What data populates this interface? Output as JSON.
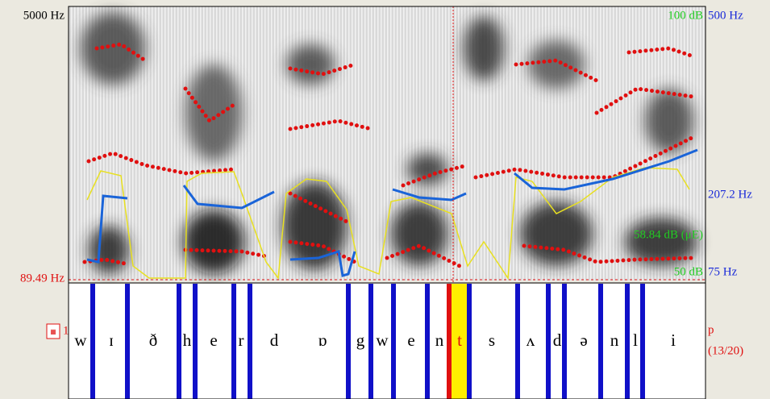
{
  "spectrogram": {
    "left_top": "5000 Hz",
    "left_cursor": "89.49 Hz",
    "intensity_top": "100 dB",
    "intensity_value": "58.84 dB (μE)",
    "intensity_bottom": "50 dB",
    "pitch_top": "500 Hz",
    "pitch_value": "207.2 Hz",
    "pitch_bottom": "75 Hz"
  },
  "tier": {
    "number": "1",
    "name": "p",
    "count": "(13/20)",
    "intervals": [
      "w",
      "ɪ",
      "ð",
      "h",
      "e",
      "r",
      "d",
      "ɒ",
      "g",
      "w",
      "e",
      "n",
      "t",
      "s",
      "ʌ",
      "d",
      "ə",
      "n",
      "l",
      "i"
    ]
  }
}
